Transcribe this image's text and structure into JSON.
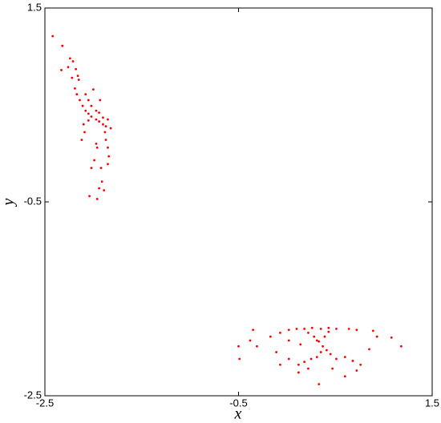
{
  "chart_data": {
    "type": "scatter",
    "xlabel": "x",
    "ylabel": "y",
    "xlim": [
      -2.5,
      1.5
    ],
    "ylim": [
      -2.5,
      1.5
    ],
    "xticks": [
      -2.5,
      -0.5,
      1.5
    ],
    "yticks": [
      -2.5,
      -0.5,
      1.5
    ],
    "series": [
      {
        "color": "#ff0000",
        "x": [
          -2.42,
          -2.32,
          -2.33,
          -2.24,
          -2.21,
          -2.26,
          -2.18,
          -2.22,
          -2.16,
          -2.19,
          -2.17,
          -2.14,
          -2.11,
          -2.08,
          -2.05,
          -2.02,
          -1.97,
          -1.94,
          -1.9,
          -1.87,
          -2.08,
          -2.05,
          -2.02,
          -1.97,
          -1.94,
          -1.9,
          -2.05,
          -2.1,
          -2.09,
          -2.12,
          -1.88,
          -1.87,
          -1.85,
          -1.84,
          -1.85,
          -1.96,
          -1.99,
          -2.02,
          -1.92,
          -1.91,
          -1.94,
          -2.04,
          -1.96,
          -1.89,
          -1.97,
          -1.93,
          -2.0,
          -2.15,
          -1.85,
          -1.82,
          -0.5,
          -0.49,
          -0.35,
          -0.31,
          -0.38,
          -0.17,
          -0.11,
          -0.07,
          0.02,
          0.1,
          0.18,
          0.26,
          0.35,
          0.43,
          0.51,
          0.64,
          0.72,
          0.22,
          0.28,
          0.33,
          0.37,
          0.41,
          0.45,
          0.31,
          0.39,
          0.43,
          0.35,
          0.31,
          0.25,
          0.18,
          0.12,
          0.02,
          -0.07,
          0.51,
          0.6,
          0.68,
          0.76,
          0.85,
          0.89,
          0.93,
          1.08,
          1.18,
          0.12,
          0.22,
          0.33,
          0.47,
          0.6,
          0.72,
          0.02,
          0.14
        ],
        "y": [
          1.21,
          1.11,
          0.86,
          0.98,
          0.95,
          0.89,
          0.87,
          0.78,
          0.8,
          0.67,
          0.61,
          0.55,
          0.49,
          0.44,
          0.41,
          0.38,
          0.35,
          0.33,
          0.3,
          0.28,
          0.61,
          0.55,
          0.49,
          0.44,
          0.42,
          0.37,
          0.34,
          0.3,
          0.22,
          0.14,
          0.22,
          0.14,
          0.06,
          -0.03,
          -0.11,
          0.06,
          -0.07,
          -0.15,
          -0.15,
          -0.29,
          -0.36,
          -0.44,
          -0.47,
          -0.38,
          0.1,
          0.55,
          0.66,
          0.76,
          0.35,
          0.26,
          -1.99,
          -2.12,
          -1.82,
          -1.99,
          -1.93,
          -1.89,
          -2.05,
          -1.85,
          -1.82,
          -1.81,
          -1.81,
          -1.8,
          -1.81,
          -1.8,
          -1.81,
          -1.81,
          -1.82,
          -1.85,
          -1.89,
          -1.94,
          -1.99,
          -2.03,
          -2.07,
          -1.93,
          -1.89,
          -1.84,
          -2.05,
          -2.1,
          -2.12,
          -2.15,
          -2.18,
          -2.12,
          -2.18,
          -2.12,
          -2.1,
          -2.14,
          -2.18,
          -2.02,
          -1.83,
          -1.89,
          -1.9,
          -1.99,
          -2.26,
          -2.22,
          -2.38,
          -2.22,
          -2.3,
          -2.24,
          -1.93,
          -1.97
        ]
      }
    ]
  }
}
